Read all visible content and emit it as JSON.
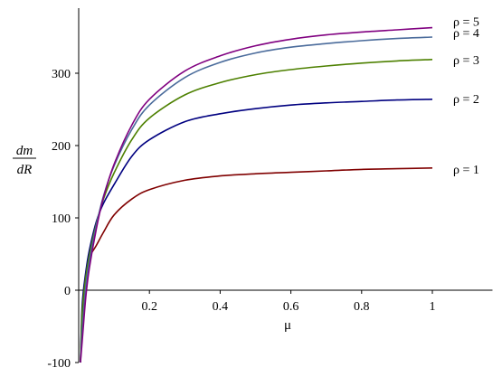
{
  "chart_data": {
    "type": "line",
    "title": "",
    "xlabel": "μ",
    "ylabel_numerator": "dm",
    "ylabel_denominator": "dR",
    "xlim": [
      0,
      1.17
    ],
    "ylim": [
      -100,
      365
    ],
    "x_ticks": [
      {
        "value": 0.2,
        "label": "0.2"
      },
      {
        "value": 0.4,
        "label": "0.4"
      },
      {
        "value": 0.6,
        "label": "0.6"
      },
      {
        "value": 0.8,
        "label": "0.8"
      },
      {
        "value": 1,
        "label": "1"
      }
    ],
    "y_ticks": [
      {
        "value": -100,
        "label": "-100"
      },
      {
        "value": 0,
        "label": "0"
      },
      {
        "value": 100,
        "label": "100"
      },
      {
        "value": 200,
        "label": "200"
      },
      {
        "value": 300,
        "label": "300"
      }
    ],
    "series": [
      {
        "name": "ρ = 1",
        "color": "#800000",
        "x": [
          0.005,
          0.01,
          0.02,
          0.03,
          0.05,
          0.07,
          0.1,
          0.15,
          0.2,
          0.3,
          0.4,
          0.5,
          0.6,
          0.7,
          0.8,
          0.9,
          1.0
        ],
        "y": [
          -100,
          -40,
          20,
          45,
          62,
          80,
          104,
          126,
          139,
          152,
          158,
          161,
          163,
          165,
          167,
          168,
          169
        ]
      },
      {
        "name": "ρ = 2",
        "color": "#000080",
        "x": [
          0.005,
          0.01,
          0.02,
          0.03,
          0.05,
          0.07,
          0.1,
          0.15,
          0.2,
          0.3,
          0.4,
          0.5,
          0.6,
          0.7,
          0.8,
          0.9,
          1.0
        ],
        "y": [
          -100,
          -20,
          25,
          55,
          95,
          120,
          146,
          185,
          208,
          233,
          244,
          251,
          256,
          259,
          261,
          263,
          264
        ]
      },
      {
        "name": "ρ = 3",
        "color": "#4d8000",
        "x": [
          0.005,
          0.01,
          0.02,
          0.03,
          0.05,
          0.07,
          0.1,
          0.15,
          0.2,
          0.3,
          0.4,
          0.5,
          0.6,
          0.7,
          0.8,
          0.9,
          1.0
        ],
        "y": [
          -100,
          -30,
          18,
          48,
          92,
          126,
          162,
          208,
          238,
          270,
          287,
          298,
          305,
          310,
          314,
          317,
          319
        ]
      },
      {
        "name": "ρ = 4",
        "color": "#4a6b9b",
        "x": [
          0.005,
          0.01,
          0.02,
          0.03,
          0.05,
          0.07,
          0.1,
          0.15,
          0.2,
          0.3,
          0.4,
          0.5,
          0.6,
          0.7,
          0.8,
          0.9,
          1.0
        ],
        "y": [
          -100,
          -55,
          5,
          40,
          90,
          130,
          172,
          222,
          256,
          294,
          315,
          328,
          336,
          341,
          345,
          348,
          350
        ]
      },
      {
        "name": "ρ = 5",
        "color": "#800080",
        "x": [
          0.005,
          0.01,
          0.02,
          0.03,
          0.05,
          0.07,
          0.1,
          0.15,
          0.2,
          0.3,
          0.4,
          0.5,
          0.6,
          0.7,
          0.8,
          0.9,
          1.0
        ],
        "y": [
          -100,
          -70,
          -10,
          30,
          85,
          128,
          174,
          228,
          264,
          303,
          324,
          338,
          347,
          353,
          357,
          360,
          363
        ]
      }
    ],
    "grid": false,
    "legend": "labels at right end of each curve"
  }
}
